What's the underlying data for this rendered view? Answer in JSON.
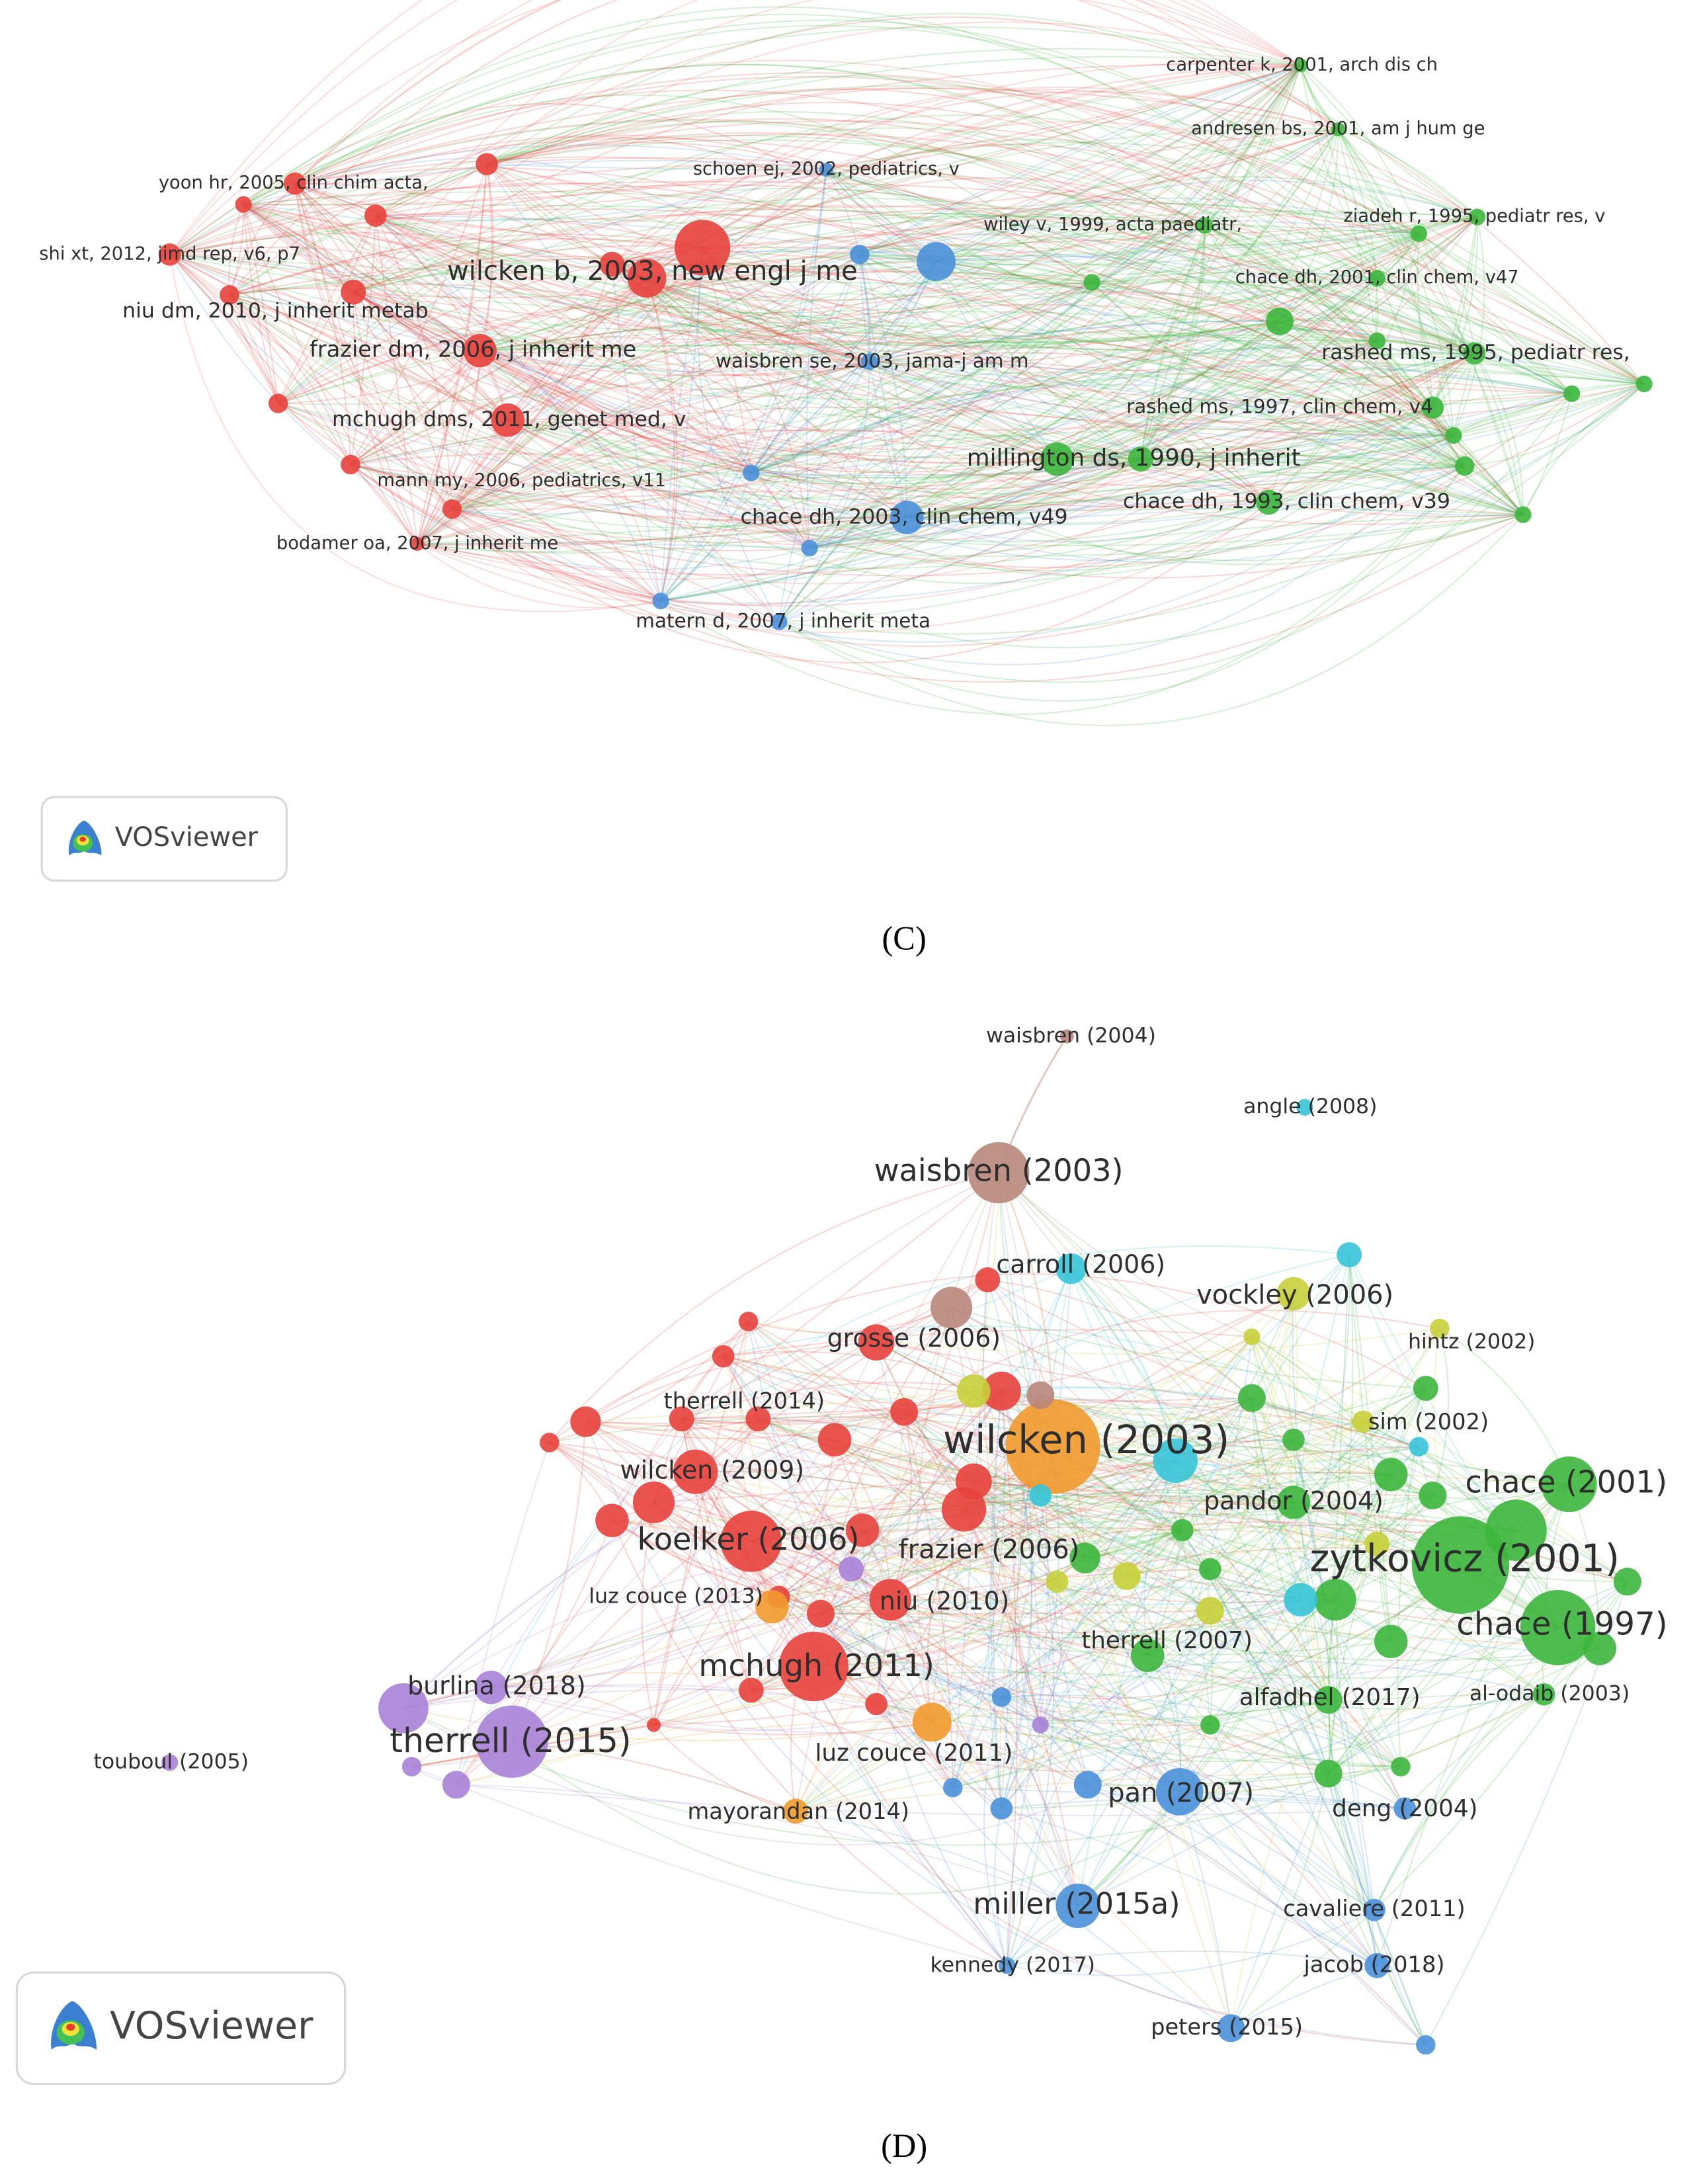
{
  "panel_c": {
    "caption": "(C)",
    "logo": "VOSviewer",
    "nodes": [
      {
        "label": "carpenter k, 2001, arch dis ch"
      },
      {
        "label": "andresen bs, 2001, am j hum ge"
      },
      {
        "label": "schoen ej, 2002, pediatrics, v"
      },
      {
        "label": "yoon hr, 2005, clin chim acta,"
      },
      {
        "label": "wiley v, 1999, acta paediatr,"
      },
      {
        "label": "ziadeh r, 1995, pediatr res, v"
      },
      {
        "label": "shi xt, 2012, jimd rep, v6, p7"
      },
      {
        "label": "wilcken b, 2003, new engl j me"
      },
      {
        "label": "chace dh, 2001, clin chem, v47"
      },
      {
        "label": "niu dm, 2010, j inherit metab"
      },
      {
        "label": "frazier dm, 2006, j inherit me"
      },
      {
        "label": "waisbren se, 2003, jama-j am m"
      },
      {
        "label": "rashed ms, 1995, pediatr res,"
      },
      {
        "label": "rashed ms, 1997, clin chem, v4"
      },
      {
        "label": "mchugh dms, 2011, genet med, v"
      },
      {
        "label": "millington ds, 1990, j inherit"
      },
      {
        "label": "mann my, 2006, pediatrics, v11"
      },
      {
        "label": "chace dh, 1993, clin chem, v39"
      },
      {
        "label": "chace dh, 2003, clin chem, v49"
      },
      {
        "label": "bodamer oa, 2007, j inherit me"
      },
      {
        "label": "matern d, 2007, j inherit meta"
      }
    ]
  },
  "panel_d": {
    "caption": "(D)",
    "logo": "VOSviewer",
    "nodes": [
      {
        "label": "waisbren (2004)"
      },
      {
        "label": "angle (2008)"
      },
      {
        "label": "waisbren (2003)"
      },
      {
        "label": "carroll (2006)"
      },
      {
        "label": "vockley (2006)"
      },
      {
        "label": "grosse (2006)"
      },
      {
        "label": "hintz (2002)"
      },
      {
        "label": "therrell (2014)"
      },
      {
        "label": "wilcken (2003)"
      },
      {
        "label": "sim (2002)"
      },
      {
        "label": "chace (2001)"
      },
      {
        "label": "wilcken (2009)"
      },
      {
        "label": "pandor (2004)"
      },
      {
        "label": "koelker (2006)"
      },
      {
        "label": "frazier (2006)"
      },
      {
        "label": "zytkovicz (2001)"
      },
      {
        "label": "luz couce (2013)"
      },
      {
        "label": "niu (2010)"
      },
      {
        "label": "chace (1997)"
      },
      {
        "label": "therrell (2007)"
      },
      {
        "label": "burlina (2018)"
      },
      {
        "label": "mchugh (2011)"
      },
      {
        "label": "alfadhel (2017)"
      },
      {
        "label": "al-odaib (2003)"
      },
      {
        "label": "therrell (2015)"
      },
      {
        "label": "touboul (2005)"
      },
      {
        "label": "luz couce (2011)"
      },
      {
        "label": "pan (2007)"
      },
      {
        "label": "deng (2004)"
      },
      {
        "label": "mayorandan (2014)"
      },
      {
        "label": "miller (2015a)"
      },
      {
        "label": "cavaliere (2011)"
      },
      {
        "label": "kennedy (2017)"
      },
      {
        "label": "jacob (2018)"
      },
      {
        "label": "peters (2015)"
      }
    ]
  }
}
